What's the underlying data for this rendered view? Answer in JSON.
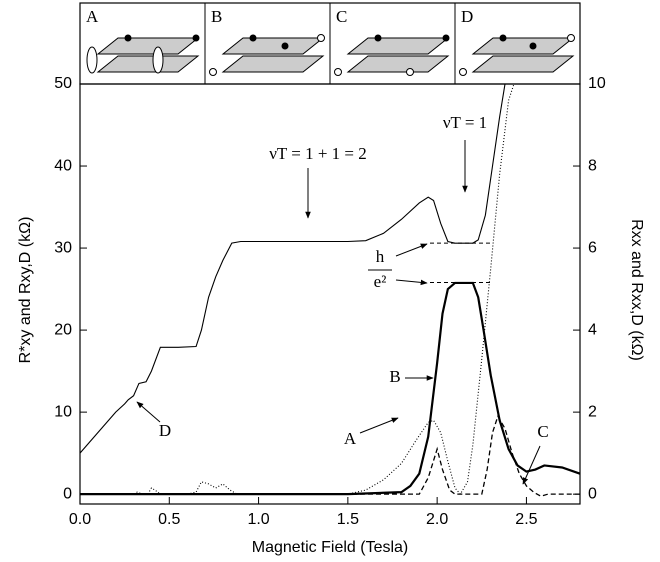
{
  "chart_data": {
    "type": "line",
    "xlabel": "Magnetic Field (Tesla)",
    "ylabel": "R*xy and Rxy,D (kΩ)",
    "y2label": "Rxx and Rxx,D (kΩ)",
    "xlim": [
      0,
      2.8
    ],
    "xticks": [
      {
        "value": 0,
        "label": "0.0"
      },
      0.5,
      {
        "value": 1,
        "label": "1.0"
      },
      1.5,
      {
        "value": 2,
        "label": "2.0"
      },
      2.5
    ],
    "ylim": [
      -1.2,
      50
    ],
    "yticks": [
      0,
      10,
      20,
      30,
      40,
      50
    ],
    "y2lim": [
      -0.24,
      10
    ],
    "y2ticks": [
      0,
      2,
      4,
      6,
      8,
      10
    ],
    "annotations": [
      "νT = 1 + 1 = 2",
      "νT = 1",
      "h",
      "e²"
    ],
    "hlines": [
      30.6,
      25.8
    ],
    "series": [
      {
        "name": "A",
        "color": "#000",
        "style": "dotted",
        "axis": "y2",
        "x": [
          0,
          0.3,
          0.32,
          0.35,
          0.38,
          0.4,
          0.42,
          0.45,
          0.6,
          0.65,
          0.68,
          0.72,
          0.76,
          0.8,
          0.84,
          0.88,
          1.5,
          1.6,
          1.7,
          1.8,
          1.88,
          1.95,
          1.98,
          2.02,
          2.06,
          2.1,
          2.13,
          2.17,
          2.2,
          2.25,
          2.3,
          2.35,
          2.4,
          2.43
        ],
        "values": [
          0,
          0,
          0.05,
          0,
          0,
          0.15,
          0.1,
          0,
          0,
          0.05,
          0.3,
          0.25,
          0.15,
          0.25,
          0.1,
          0,
          0,
          0.1,
          0.35,
          0.75,
          1.3,
          1.75,
          1.8,
          1.5,
          0.8,
          0.15,
          0,
          0.3,
          1.2,
          3.3,
          5.5,
          7.8,
          9.6,
          10
        ]
      },
      {
        "name": "B",
        "color": "#000",
        "style": "thick",
        "axis": "y2",
        "x": [
          0,
          1.5,
          1.8,
          1.85,
          1.9,
          1.95,
          2.0,
          2.03,
          2.06,
          2.1,
          2.2,
          2.23,
          2.26,
          2.3,
          2.35,
          2.4,
          2.45,
          2.5,
          2.55,
          2.6,
          2.7,
          2.8
        ],
        "values": [
          0,
          0,
          0.05,
          0.2,
          0.5,
          1.4,
          3.2,
          4.4,
          5.0,
          5.15,
          5.15,
          4.8,
          4.0,
          2.9,
          1.8,
          1.1,
          0.7,
          0.55,
          0.6,
          0.7,
          0.65,
          0.5
        ]
      },
      {
        "name": "C",
        "color": "#000",
        "style": "dashed",
        "axis": "y2",
        "x": [
          0,
          1.9,
          1.95,
          2.0,
          2.03,
          2.07,
          2.1,
          2.25,
          2.28,
          2.31,
          2.34,
          2.38,
          2.42,
          2.46,
          2.5,
          2.54,
          2.58,
          2.62,
          2.8
        ],
        "values": [
          0,
          0,
          0.4,
          1.1,
          0.6,
          0.1,
          0,
          0,
          0.6,
          1.5,
          1.9,
          1.6,
          1.0,
          0.5,
          0.2,
          0.05,
          -0.05,
          0,
          0
        ]
      },
      {
        "name": "D",
        "color": "#000",
        "style": "solid",
        "axis": "y",
        "x": [
          0,
          0.1,
          0.2,
          0.25,
          0.27,
          0.3,
          0.33,
          0.37,
          0.4,
          0.45,
          0.55,
          0.65,
          0.68,
          0.72,
          0.76,
          0.8,
          0.85,
          0.9,
          1.5,
          1.6,
          1.7,
          1.8,
          1.9,
          1.95,
          1.98,
          2.02,
          2.06,
          2.1,
          2.2,
          2.23,
          2.27,
          2.31,
          2.35,
          2.38
        ],
        "values": [
          5,
          7.5,
          10,
          11,
          11.5,
          12,
          13.5,
          13.7,
          15,
          17.9,
          17.9,
          18,
          20,
          24,
          26.5,
          28.5,
          30.6,
          30.8,
          30.8,
          30.9,
          31.8,
          33.5,
          35.5,
          36.2,
          35.8,
          33,
          30.8,
          30.6,
          30.6,
          31,
          34,
          40,
          46,
          50
        ]
      }
    ]
  }
}
